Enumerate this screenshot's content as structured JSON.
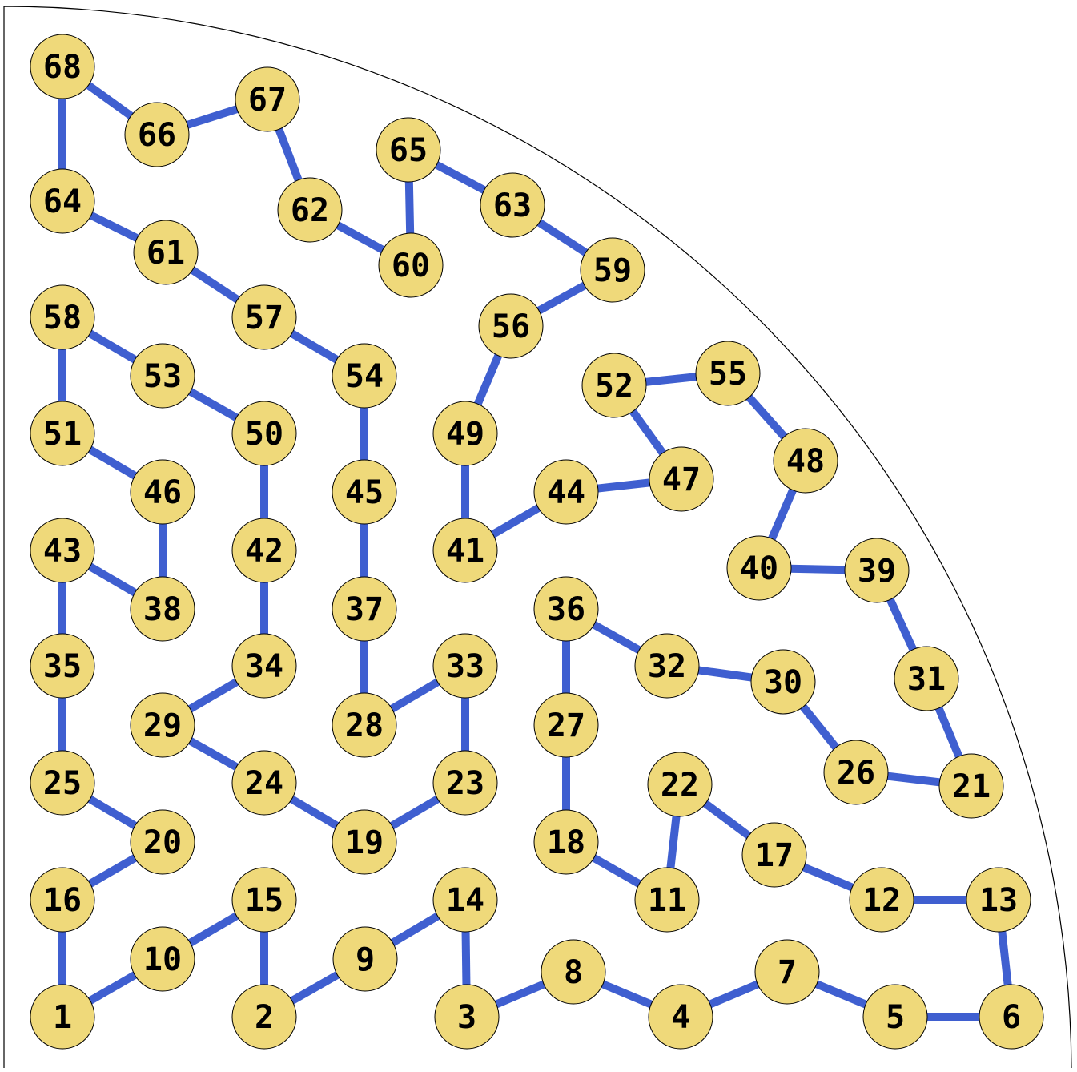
{
  "colors": {
    "node_fill": "#efd97a",
    "node_stroke": "#000000",
    "edge": "#3f5fd0",
    "border": "#000000",
    "background": "#ffffff"
  },
  "nodes": [
    "1",
    "2",
    "3",
    "4",
    "5",
    "6",
    "7",
    "8",
    "9",
    "10",
    "11",
    "12",
    "13",
    "14",
    "15",
    "16",
    "17",
    "18",
    "19",
    "20",
    "21",
    "22",
    "23",
    "24",
    "25",
    "26",
    "27",
    "28",
    "29",
    "30",
    "31",
    "32",
    "33",
    "34",
    "35",
    "36",
    "37",
    "38",
    "39",
    "40",
    "41",
    "42",
    "43",
    "44",
    "45",
    "46",
    "47",
    "48",
    "49",
    "50",
    "51",
    "52",
    "53",
    "54",
    "55",
    "56",
    "57",
    "58",
    "59",
    "60",
    "61",
    "62",
    "63",
    "64",
    "65",
    "66",
    "67",
    "68"
  ],
  "edges": [
    [
      "1",
      "10"
    ],
    [
      "10",
      "15"
    ],
    [
      "15",
      "2"
    ],
    [
      "2",
      "9"
    ],
    [
      "9",
      "14"
    ],
    [
      "14",
      "3"
    ],
    [
      "3",
      "8"
    ],
    [
      "8",
      "4"
    ],
    [
      "4",
      "7"
    ],
    [
      "7",
      "5"
    ],
    [
      "5",
      "6"
    ],
    [
      "6",
      "13"
    ],
    [
      "13",
      "12"
    ],
    [
      "12",
      "17"
    ],
    [
      "17",
      "22"
    ],
    [
      "22",
      "11"
    ],
    [
      "11",
      "18"
    ],
    [
      "18",
      "27"
    ],
    [
      "27",
      "36"
    ],
    [
      "36",
      "32"
    ],
    [
      "32",
      "30"
    ],
    [
      "30",
      "26"
    ],
    [
      "26",
      "21"
    ],
    [
      "21",
      "31"
    ],
    [
      "31",
      "39"
    ],
    [
      "39",
      "40"
    ],
    [
      "40",
      "48"
    ],
    [
      "48",
      "55"
    ],
    [
      "55",
      "52"
    ],
    [
      "52",
      "47"
    ],
    [
      "47",
      "44"
    ],
    [
      "44",
      "41"
    ],
    [
      "41",
      "49"
    ],
    [
      "49",
      "56"
    ],
    [
      "56",
      "59"
    ],
    [
      "59",
      "63"
    ],
    [
      "63",
      "65"
    ],
    [
      "65",
      "60"
    ],
    [
      "60",
      "62"
    ],
    [
      "62",
      "67"
    ],
    [
      "67",
      "66"
    ],
    [
      "66",
      "68"
    ],
    [
      "68",
      "64"
    ],
    [
      "64",
      "61"
    ],
    [
      "61",
      "57"
    ],
    [
      "57",
      "54"
    ],
    [
      "54",
      "45"
    ],
    [
      "45",
      "37"
    ],
    [
      "37",
      "28"
    ],
    [
      "28",
      "33"
    ],
    [
      "33",
      "23"
    ],
    [
      "23",
      "19"
    ],
    [
      "19",
      "24"
    ],
    [
      "24",
      "29"
    ],
    [
      "29",
      "34"
    ],
    [
      "34",
      "42"
    ],
    [
      "42",
      "50"
    ],
    [
      "50",
      "53"
    ],
    [
      "53",
      "58"
    ],
    [
      "58",
      "51"
    ],
    [
      "51",
      "46"
    ],
    [
      "46",
      "38"
    ],
    [
      "38",
      "43"
    ],
    [
      "43",
      "35"
    ],
    [
      "35",
      "25"
    ],
    [
      "25",
      "20"
    ],
    [
      "20",
      "16"
    ],
    [
      "16",
      "1"
    ]
  ]
}
